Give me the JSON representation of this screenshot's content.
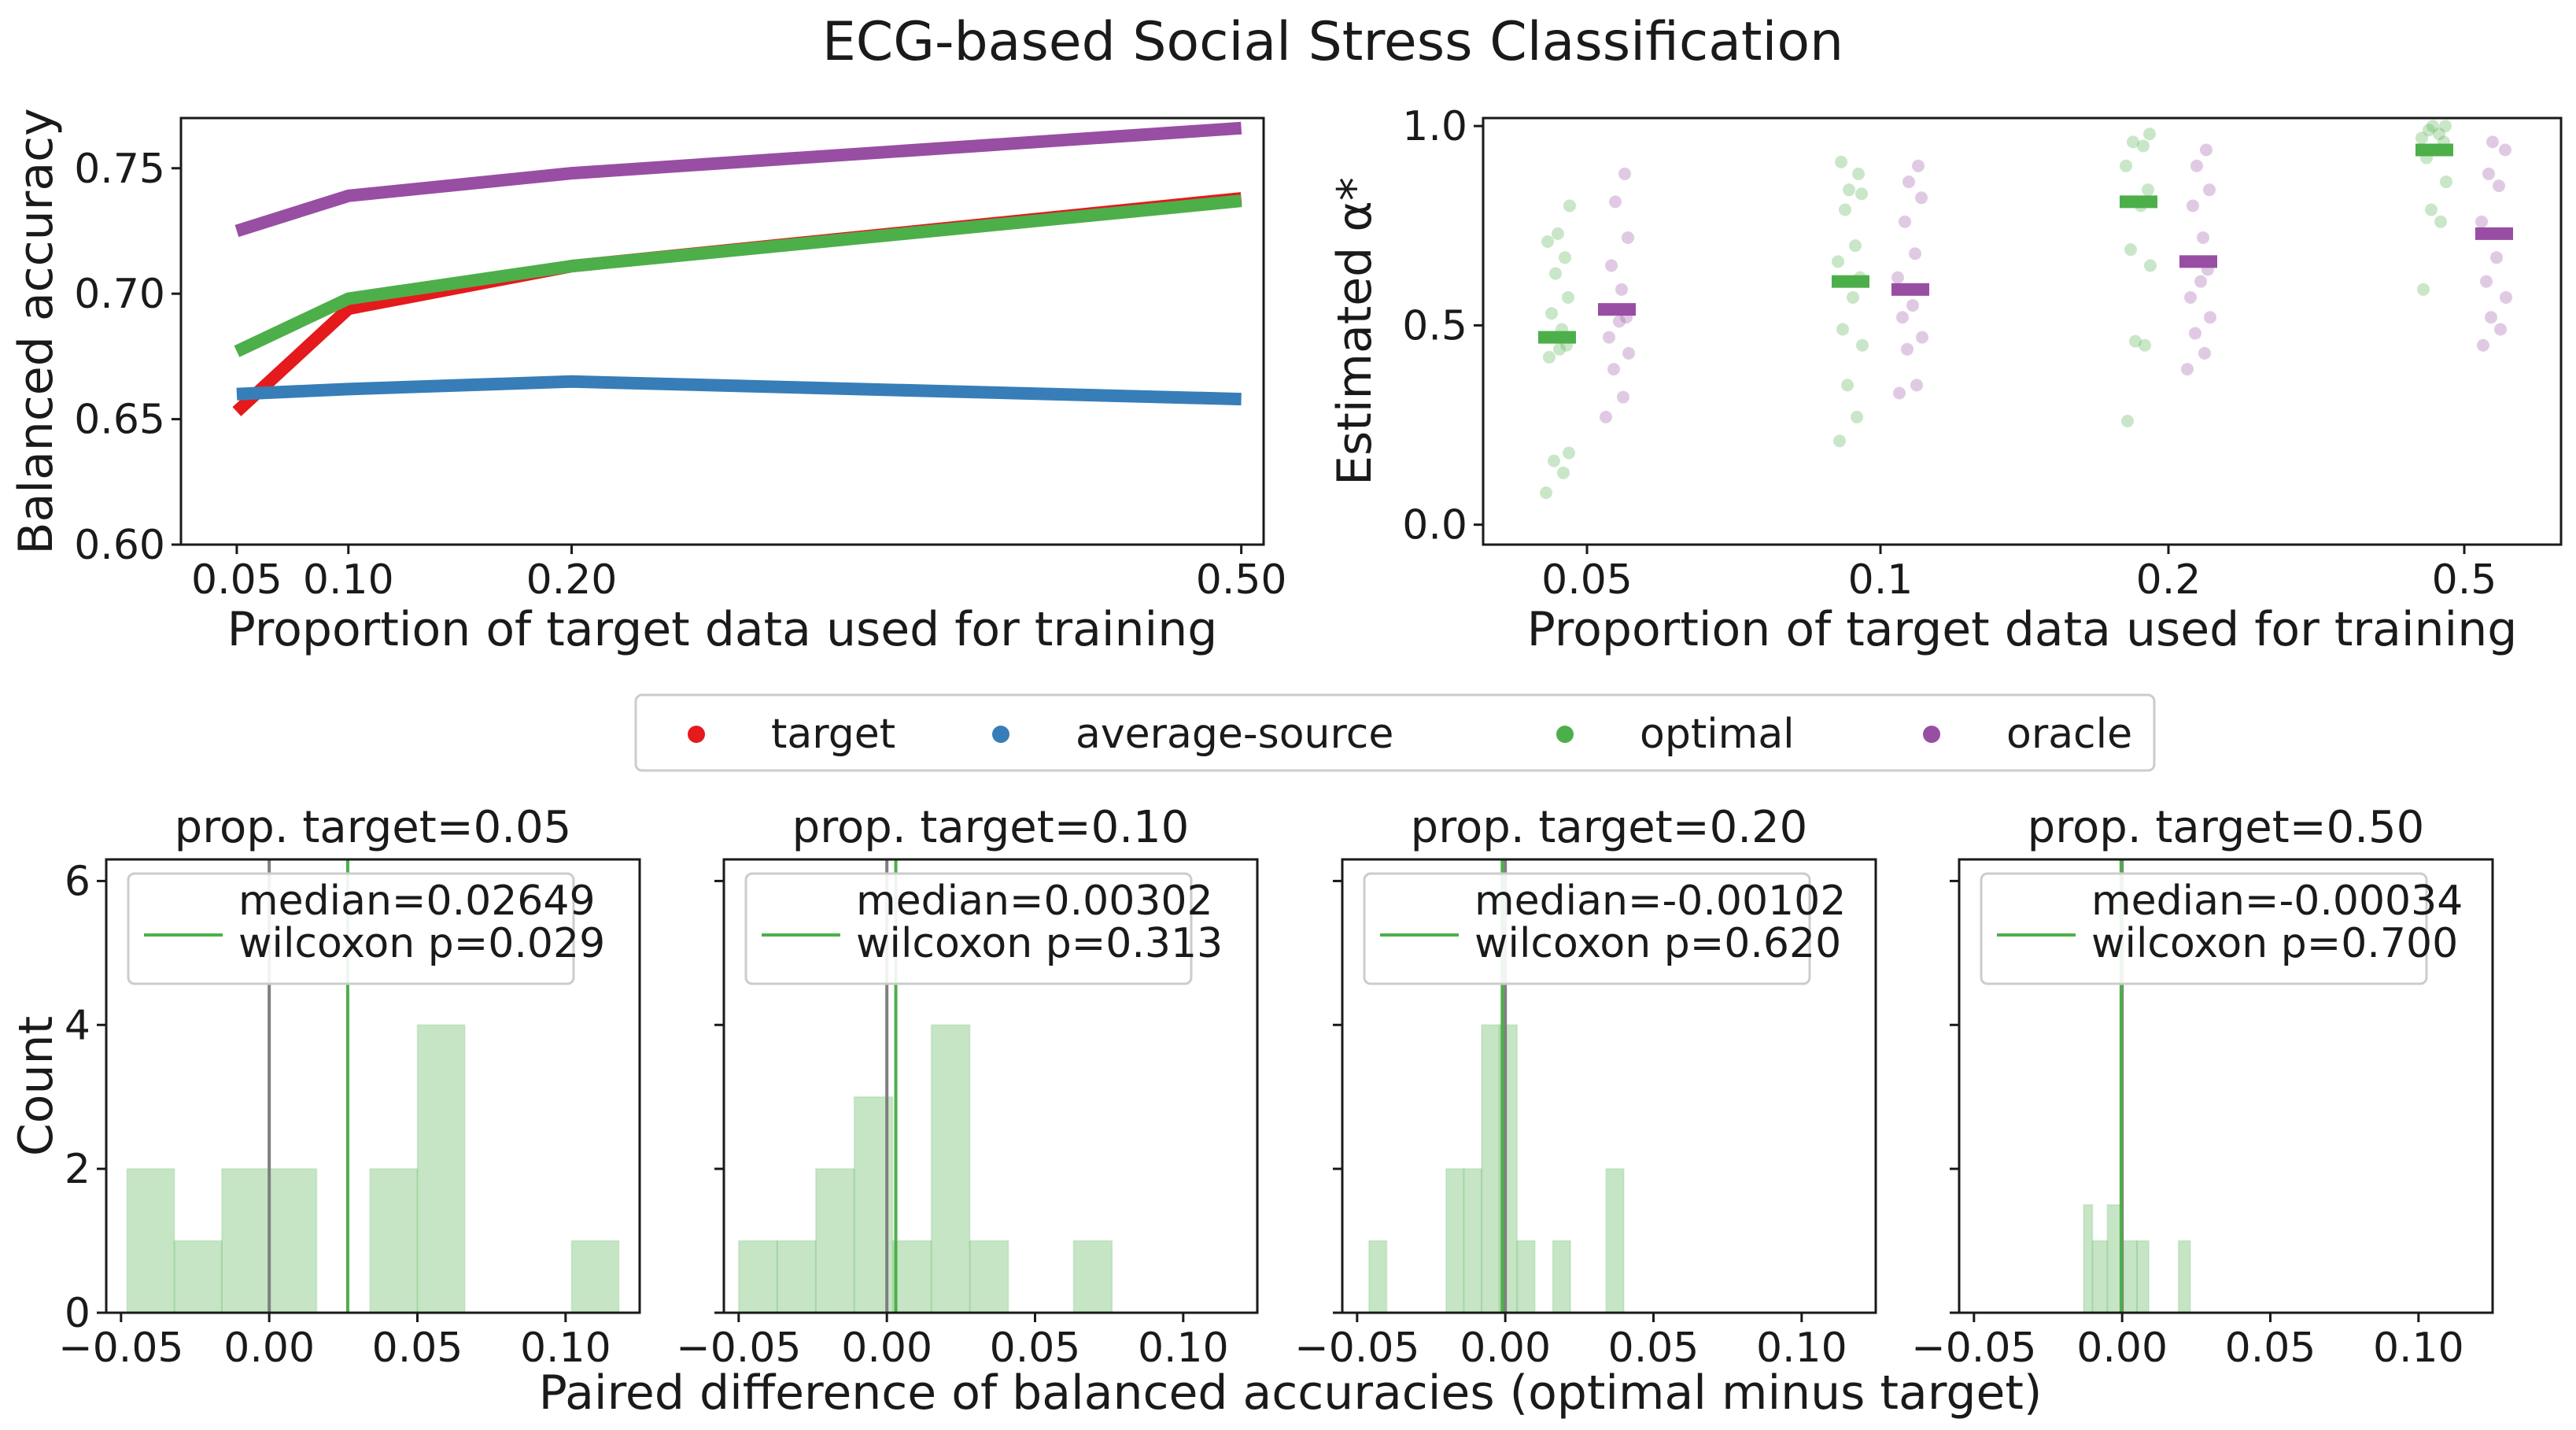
{
  "figure": {
    "title": "ECG-based Social Stress Classification"
  },
  "colors": {
    "target": "#e41a1c",
    "average-source": "#377eb8",
    "optimal": "#4daf4a",
    "oracle": "#984ea3"
  },
  "legend": [
    {
      "key": "target",
      "label": "target"
    },
    {
      "key": "average-source",
      "label": "average-source"
    },
    {
      "key": "optimal",
      "label": "optimal"
    },
    {
      "key": "oracle",
      "label": "oracle"
    }
  ],
  "shared_xlabel": "Paired difference of balanced accuracies (optimal minus target)",
  "chart_data": [
    {
      "id": "accuracy",
      "type": "line",
      "xlabel": "Proportion of target data used for training",
      "ylabel": "Balanced accuracy",
      "x": [
        0.05,
        0.1,
        0.2,
        0.5
      ],
      "xtick_labels": [
        "0.05",
        "0.10",
        "0.20",
        "0.50"
      ],
      "xlim": [
        0.025,
        0.51
      ],
      "ylim": [
        0.6,
        0.77
      ],
      "yticks": [
        0.6,
        0.65,
        0.7,
        0.75
      ],
      "ytick_labels": [
        "0.60",
        "0.65",
        "0.70",
        "0.75"
      ],
      "series": [
        {
          "key": "target",
          "values": [
            0.653,
            0.694,
            0.711,
            0.738
          ]
        },
        {
          "key": "average-source",
          "values": [
            0.66,
            0.662,
            0.665,
            0.658
          ]
        },
        {
          "key": "optimal",
          "values": [
            0.677,
            0.698,
            0.711,
            0.737
          ]
        },
        {
          "key": "oracle",
          "values": [
            0.725,
            0.739,
            0.748,
            0.766
          ]
        }
      ]
    },
    {
      "id": "alpha",
      "type": "scatter",
      "xlabel": "Proportion of target data used for training",
      "ylabel": "Estimated α*",
      "categories": [
        "0.05",
        "0.1",
        "0.2",
        "0.5"
      ],
      "ylim": [
        -0.05,
        1.02
      ],
      "yticks": [
        0.0,
        0.5,
        1.0
      ],
      "ytick_labels": [
        "0.0",
        "0.5",
        "1.0"
      ],
      "series": [
        {
          "key": "optimal",
          "medians": [
            0.47,
            0.61,
            0.81,
            0.94
          ],
          "points": [
            [
              0.08,
              0.13,
              0.16,
              0.18,
              0.42,
              0.44,
              0.45,
              0.47,
              0.49,
              0.53,
              0.57,
              0.63,
              0.67,
              0.71,
              0.73,
              0.8
            ],
            [
              0.21,
              0.27,
              0.35,
              0.45,
              0.49,
              0.57,
              0.62,
              0.66,
              0.7,
              0.79,
              0.83,
              0.84,
              0.88,
              0.91
            ],
            [
              0.26,
              0.45,
              0.46,
              0.65,
              0.69,
              0.8,
              0.84,
              0.9,
              0.95,
              0.96,
              0.98
            ],
            [
              0.59,
              0.76,
              0.79,
              0.86,
              0.92,
              0.94,
              0.96,
              0.97,
              0.98,
              0.99,
              1.0,
              1.0
            ]
          ]
        },
        {
          "key": "oracle",
          "medians": [
            0.54,
            0.59,
            0.66,
            0.73
          ],
          "points": [
            [
              0.27,
              0.32,
              0.39,
              0.43,
              0.47,
              0.51,
              0.52,
              0.54,
              0.59,
              0.65,
              0.72,
              0.81,
              0.88
            ],
            [
              0.33,
              0.35,
              0.44,
              0.47,
              0.52,
              0.55,
              0.59,
              0.62,
              0.68,
              0.76,
              0.82,
              0.86,
              0.9
            ],
            [
              0.39,
              0.43,
              0.48,
              0.52,
              0.57,
              0.61,
              0.64,
              0.66,
              0.72,
              0.8,
              0.84,
              0.9,
              0.94
            ],
            [
              0.45,
              0.49,
              0.52,
              0.57,
              0.61,
              0.67,
              0.73,
              0.76,
              0.85,
              0.88,
              0.94,
              0.96
            ]
          ]
        }
      ]
    },
    {
      "id": "hist-0.05",
      "type": "bar",
      "title": "prop. target=0.05",
      "ylabel": "Count",
      "xlim": [
        -0.055,
        0.125
      ],
      "ylim": [
        0,
        6.3
      ],
      "xticks": [
        -0.05,
        0.0,
        0.05,
        0.1
      ],
      "xtick_labels": [
        "−0.05",
        "0.00",
        "0.05",
        "0.10"
      ],
      "yticks": [
        0,
        2,
        4,
        6
      ],
      "ytick_labels": [
        "0",
        "2",
        "4",
        "6"
      ],
      "bins": [
        [
          -0.048,
          -0.032,
          2
        ],
        [
          -0.032,
          -0.016,
          1
        ],
        [
          -0.016,
          0.0,
          2
        ],
        [
          0.0,
          0.016,
          2
        ],
        [
          0.034,
          0.05,
          2
        ],
        [
          0.05,
          0.066,
          4
        ],
        [
          0.102,
          0.118,
          1
        ]
      ],
      "zero_line": 0.0,
      "median_line": 0.02649,
      "legend_line1": "median=0.02649",
      "legend_line2": "wilcoxon p=0.029"
    },
    {
      "id": "hist-0.10",
      "type": "bar",
      "title": "prop. target=0.10",
      "xlim": [
        -0.055,
        0.125
      ],
      "ylim": [
        0,
        6.3
      ],
      "xticks": [
        -0.05,
        0.0,
        0.05,
        0.1
      ],
      "xtick_labels": [
        "−0.05",
        "0.00",
        "0.05",
        "0.10"
      ],
      "bins": [
        [
          -0.05,
          -0.037,
          1
        ],
        [
          -0.037,
          -0.024,
          1
        ],
        [
          -0.024,
          -0.011,
          2
        ],
        [
          -0.011,
          0.002,
          3
        ],
        [
          0.002,
          0.015,
          1
        ],
        [
          0.015,
          0.028,
          4
        ],
        [
          0.028,
          0.041,
          1
        ],
        [
          0.063,
          0.076,
          1
        ]
      ],
      "zero_line": 0.0,
      "median_line": 0.00302,
      "legend_line1": "median=0.00302",
      "legend_line2": "wilcoxon p=0.313"
    },
    {
      "id": "hist-0.20",
      "type": "bar",
      "title": "prop. target=0.20",
      "xlim": [
        -0.055,
        0.125
      ],
      "ylim": [
        0,
        6.3
      ],
      "xticks": [
        -0.05,
        0.0,
        0.05,
        0.1
      ],
      "xtick_labels": [
        "−0.05",
        "0.00",
        "0.05",
        "0.10"
      ],
      "bins": [
        [
          -0.046,
          -0.04,
          1
        ],
        [
          -0.02,
          -0.014,
          2
        ],
        [
          -0.014,
          -0.008,
          2
        ],
        [
          -0.008,
          -0.002,
          4
        ],
        [
          -0.002,
          0.004,
          4
        ],
        [
          0.004,
          0.01,
          1
        ],
        [
          0.016,
          0.022,
          1
        ],
        [
          0.034,
          0.04,
          2
        ]
      ],
      "zero_line": 0.0,
      "median_line": -0.00102,
      "legend_line1": "median=-0.00102",
      "legend_line2": "wilcoxon p=0.620"
    },
    {
      "id": "hist-0.50",
      "type": "bar",
      "title": "prop. target=0.50",
      "xlim": [
        -0.055,
        0.125
      ],
      "ylim": [
        0,
        6.3
      ],
      "xticks": [
        -0.05,
        0.0,
        0.05,
        0.1
      ],
      "xtick_labels": [
        "−0.05",
        "0.00",
        "0.05",
        "0.10"
      ],
      "bins": [
        [
          -0.013,
          -0.01,
          1.5
        ],
        [
          -0.01,
          -0.005,
          1
        ],
        [
          -0.005,
          0.0,
          1.5
        ],
        [
          0.0,
          0.005,
          1
        ],
        [
          0.005,
          0.009,
          1
        ],
        [
          0.019,
          0.023,
          1
        ]
      ],
      "zero_line": 0.0,
      "median_line": -0.00034,
      "legend_line1": "median=-0.00034",
      "legend_line2": "wilcoxon p=0.700"
    }
  ]
}
